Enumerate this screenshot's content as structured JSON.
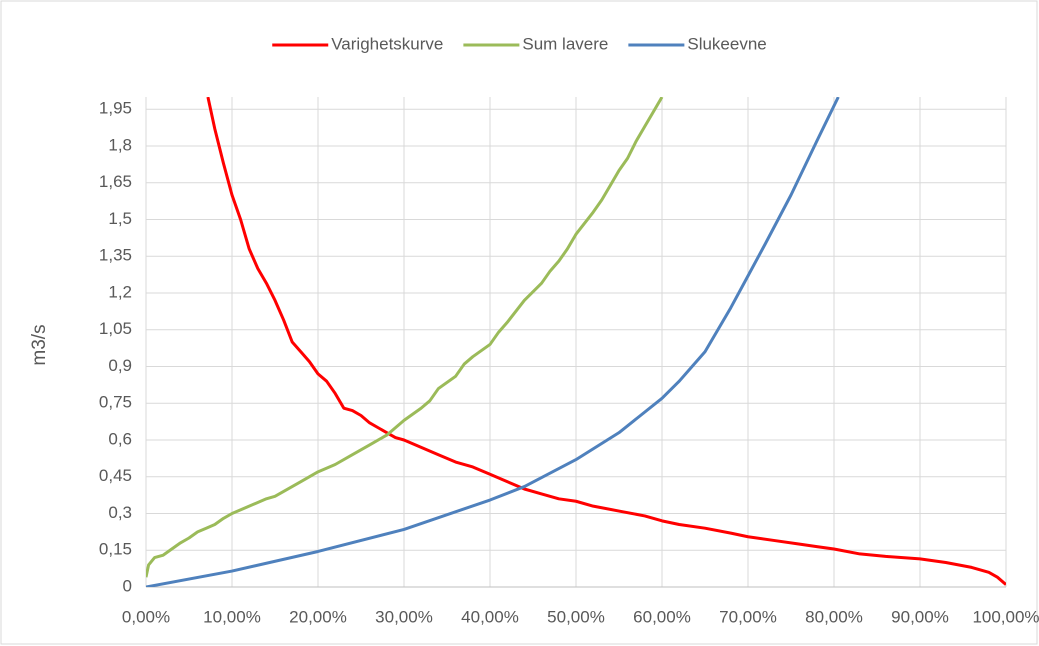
{
  "chart_data": {
    "type": "line",
    "ylabel": "m3/s",
    "xlim": [
      0,
      100
    ],
    "ylim": [
      0,
      2.0
    ],
    "xticks": [
      {
        "value": 0,
        "label": "0,00%"
      },
      {
        "value": 10,
        "label": "10,00%"
      },
      {
        "value": 20,
        "label": "20,00%"
      },
      {
        "value": 30,
        "label": "30,00%"
      },
      {
        "value": 40,
        "label": "40,00%"
      },
      {
        "value": 50,
        "label": "50,00%"
      },
      {
        "value": 60,
        "label": "60,00%"
      },
      {
        "value": 70,
        "label": "70,00%"
      },
      {
        "value": 80,
        "label": "80,00%"
      },
      {
        "value": 90,
        "label": "90,00%"
      },
      {
        "value": 100,
        "label": "100,00%"
      }
    ],
    "yticks": [
      0,
      {
        "value": 0.15,
        "label": "0,15"
      },
      {
        "value": 0.3,
        "label": "0,3"
      },
      {
        "value": 0.45,
        "label": "0,45"
      },
      {
        "value": 0.6,
        "label": "0,6"
      },
      {
        "value": 0.75,
        "label": "0,75"
      },
      {
        "value": 0.9,
        "label": "0,9"
      },
      {
        "value": 1.05,
        "label": "1,05"
      },
      {
        "value": 1.2,
        "label": "1,2"
      },
      {
        "value": 1.35,
        "label": "1,35"
      },
      {
        "value": 1.5,
        "label": "1,5"
      },
      {
        "value": 1.65,
        "label": "1,65"
      },
      {
        "value": 1.8,
        "label": "1,8"
      },
      {
        "value": 1.95,
        "label": "1,95"
      }
    ],
    "grid": true,
    "legend": "top",
    "series": [
      {
        "name": "Varighetskurve",
        "color": "#ff0000",
        "x": [
          7.2,
          8,
          9,
          10,
          11,
          12,
          13,
          14,
          15,
          16,
          17,
          18,
          19,
          20,
          21,
          22,
          23,
          24,
          25,
          26,
          27,
          28,
          29,
          30,
          32,
          34,
          36,
          38,
          40,
          42,
          44,
          46,
          48,
          50,
          52,
          55,
          58,
          60,
          62,
          65,
          68,
          70,
          73,
          76,
          78,
          80,
          83,
          86,
          90,
          93,
          96,
          98,
          99,
          100
        ],
        "values": [
          2.0,
          1.87,
          1.73,
          1.6,
          1.5,
          1.38,
          1.3,
          1.24,
          1.17,
          1.09,
          1.0,
          0.96,
          0.92,
          0.87,
          0.84,
          0.79,
          0.73,
          0.72,
          0.7,
          0.67,
          0.65,
          0.63,
          0.61,
          0.6,
          0.57,
          0.54,
          0.51,
          0.49,
          0.46,
          0.43,
          0.4,
          0.38,
          0.36,
          0.35,
          0.33,
          0.31,
          0.29,
          0.27,
          0.255,
          0.24,
          0.22,
          0.205,
          0.19,
          0.175,
          0.165,
          0.155,
          0.135,
          0.125,
          0.115,
          0.1,
          0.08,
          0.06,
          0.04,
          0.01
        ]
      },
      {
        "name": "Sum lavere",
        "color": "#9bbb59",
        "x": [
          0,
          0.3,
          1,
          2,
          3,
          4,
          5,
          6,
          7,
          8,
          9,
          10,
          12,
          14,
          15,
          16,
          18,
          20,
          22,
          24,
          26,
          28,
          30,
          32,
          33,
          34,
          36,
          37,
          38,
          40,
          41,
          42,
          44,
          46,
          47,
          48,
          49,
          50,
          52,
          53,
          54,
          55,
          56,
          57,
          58,
          59,
          60
        ],
        "values": [
          0.04,
          0.09,
          0.12,
          0.13,
          0.155,
          0.18,
          0.2,
          0.225,
          0.24,
          0.255,
          0.28,
          0.3,
          0.33,
          0.36,
          0.37,
          0.39,
          0.43,
          0.47,
          0.5,
          0.54,
          0.58,
          0.62,
          0.68,
          0.73,
          0.76,
          0.81,
          0.86,
          0.91,
          0.94,
          0.99,
          1.04,
          1.08,
          1.17,
          1.24,
          1.29,
          1.33,
          1.38,
          1.44,
          1.53,
          1.58,
          1.64,
          1.7,
          1.75,
          1.82,
          1.88,
          1.94,
          2.0
        ]
      },
      {
        "name": "Slukeevne",
        "color": "#4f81bd",
        "x": [
          0,
          10,
          20,
          30,
          40,
          44,
          50,
          55,
          60,
          62,
          65,
          68,
          70,
          72,
          75,
          78,
          80.5
        ],
        "values": [
          0,
          0.065,
          0.145,
          0.235,
          0.355,
          0.41,
          0.52,
          0.63,
          0.77,
          0.84,
          0.96,
          1.14,
          1.27,
          1.4,
          1.6,
          1.82,
          2.0
        ]
      }
    ]
  }
}
